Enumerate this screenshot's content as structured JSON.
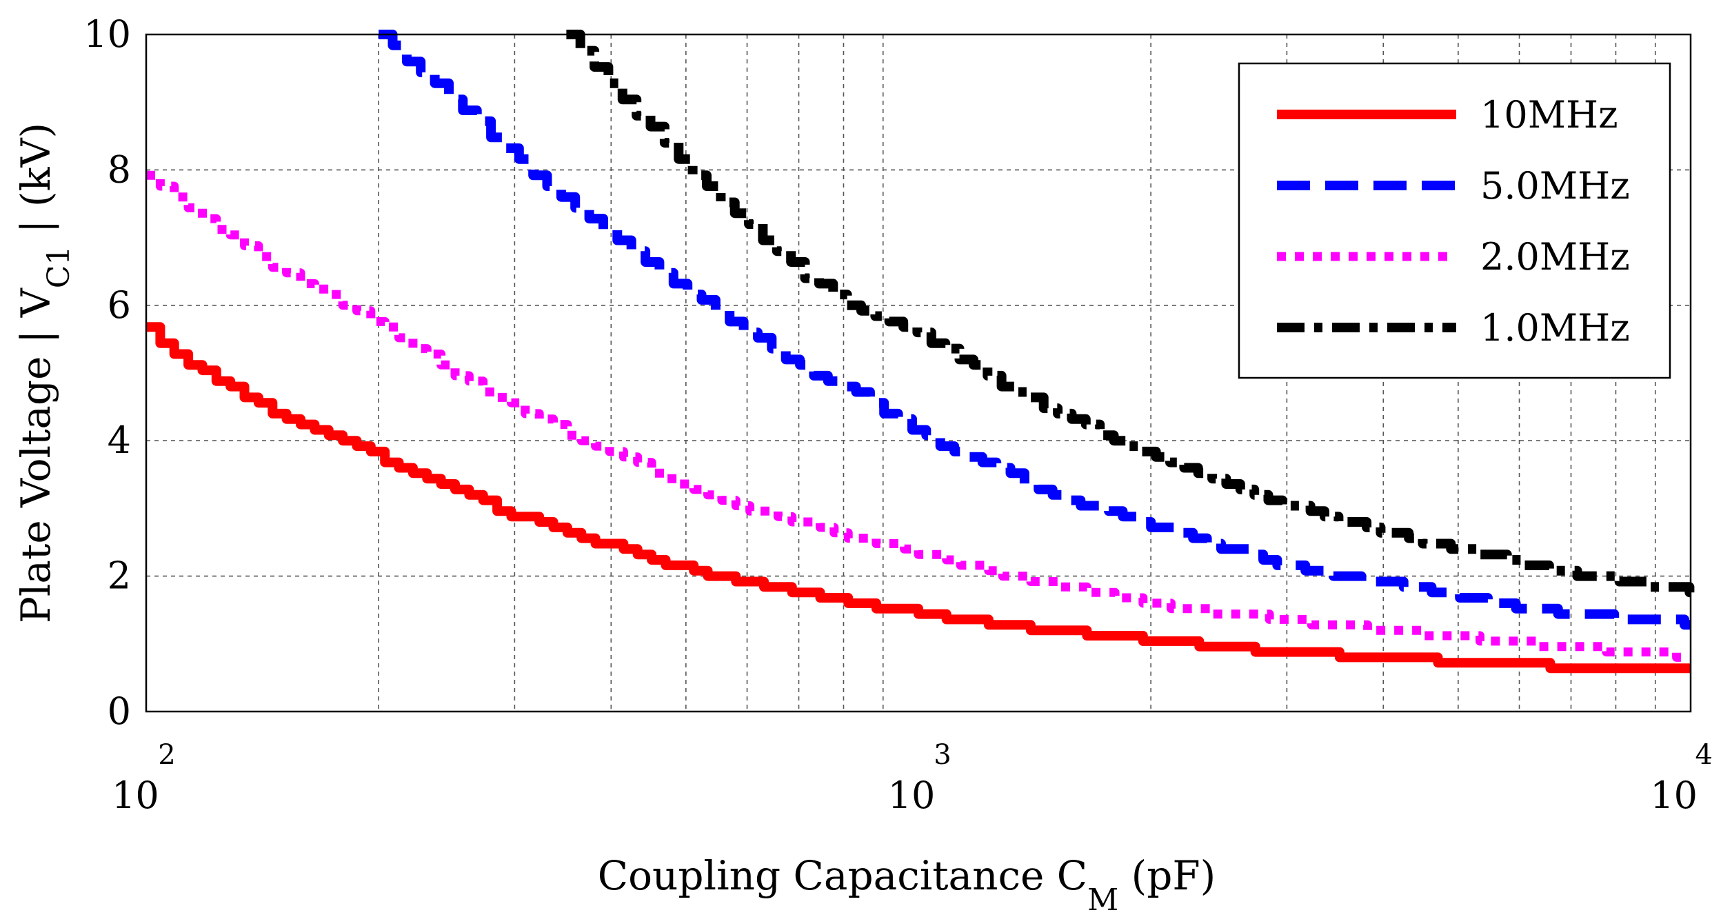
{
  "chart_data": {
    "type": "line",
    "title": "",
    "xlabel": "Coupling Capacitance C",
    "xlabel_sub": "M",
    "xlabel_unit": " (pF)",
    "ylabel": "Plate Voltage | V",
    "ylabel_sub": "C1",
    "ylabel_unit": " | (kV)",
    "xscale": "log",
    "xlim": [
      100,
      10000
    ],
    "ylim": [
      0,
      10
    ],
    "grid": true,
    "legend_position": "top-right",
    "x_ticks": [
      {
        "base": "10",
        "exp": "2"
      },
      {
        "base": "10",
        "exp": "3"
      },
      {
        "base": "10",
        "exp": "4"
      }
    ],
    "y_ticks": [
      "0",
      "2",
      "4",
      "6",
      "8",
      "10"
    ],
    "series": [
      {
        "name": "10MHz",
        "color": "#ff0000",
        "style": "solid",
        "x": [
          100,
          110,
          125,
          150,
          175,
          200,
          250,
          300,
          350,
          400,
          500,
          600,
          700,
          800,
          1000,
          1250,
          1500,
          2000,
          2500,
          3000,
          4000,
          5000,
          6000,
          7000,
          8000,
          10000
        ],
        "y": [
          5.65,
          5.25,
          4.85,
          4.35,
          4.05,
          3.75,
          3.25,
          2.9,
          2.65,
          2.45,
          2.1,
          1.9,
          1.75,
          1.62,
          1.45,
          1.3,
          1.2,
          1.05,
          0.95,
          0.88,
          0.8,
          0.74,
          0.7,
          0.66,
          0.64,
          0.6
        ]
      },
      {
        "name": "5.0MHz",
        "color": "#0000ff",
        "style": "dashed",
        "x": [
          200,
          250,
          300,
          350,
          400,
          500,
          600,
          700,
          800,
          1000,
          1250,
          1500,
          2000,
          2500,
          3000,
          4000,
          5000,
          6000,
          7000,
          8000,
          10000
        ],
        "y": [
          10.0,
          9.0,
          8.2,
          7.5,
          7.0,
          6.2,
          5.6,
          5.1,
          4.8,
          4.1,
          3.6,
          3.2,
          2.75,
          2.4,
          2.15,
          1.9,
          1.7,
          1.55,
          1.45,
          1.38,
          1.3
        ]
      },
      {
        "name": "2.0MHz",
        "color": "#ff00ff",
        "style": "dotted",
        "x": [
          100,
          125,
          150,
          175,
          200,
          250,
          300,
          350,
          400,
          500,
          600,
          700,
          800,
          1000,
          1250,
          1500,
          2000,
          2500,
          3000,
          4000,
          5000,
          6000,
          7000,
          8000,
          10000
        ],
        "y": [
          7.95,
          7.1,
          6.5,
          6.1,
          5.7,
          5.0,
          4.5,
          4.1,
          3.8,
          3.35,
          3.0,
          2.8,
          2.6,
          2.35,
          2.05,
          1.85,
          1.6,
          1.45,
          1.35,
          1.2,
          1.1,
          1.02,
          0.95,
          0.9,
          0.82
        ]
      },
      {
        "name": "1.0MHz",
        "color": "#000000",
        "style": "dashdot",
        "x": [
          350,
          400,
          450,
          500,
          600,
          700,
          800,
          1000,
          1250,
          1500,
          2000,
          2500,
          3000,
          4000,
          5000,
          6000,
          7000,
          8000,
          10000
        ],
        "y": [
          10.0,
          9.2,
          8.6,
          8.0,
          7.2,
          6.5,
          6.05,
          5.6,
          4.9,
          4.4,
          3.8,
          3.35,
          3.05,
          2.65,
          2.4,
          2.2,
          2.05,
          1.95,
          1.78
        ]
      }
    ]
  }
}
